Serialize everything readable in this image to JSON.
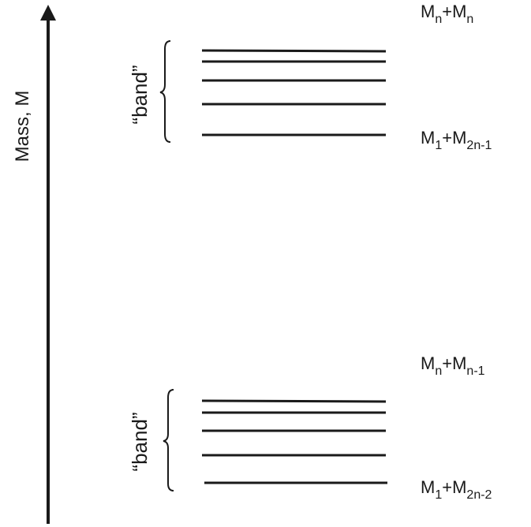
{
  "axis": {
    "label": "Mass, M"
  },
  "upper_band": {
    "brace_label": "“band”",
    "top_label": {
      "base1": "M",
      "sub1": "n",
      "plus": "+",
      "base2": "M",
      "sub2": "n"
    },
    "bottom_label": {
      "base1": "M",
      "sub1": "1",
      "plus": "+",
      "base2": "M",
      "sub2": "2n-1"
    },
    "level_count": 5
  },
  "lower_band": {
    "brace_label": "“band”",
    "top_label": {
      "base1": "M",
      "sub1": "n",
      "plus": "+",
      "base2": "M",
      "sub2": "n-1"
    },
    "bottom_label": {
      "base1": "M",
      "sub1": "1",
      "plus": "+",
      "base2": "M",
      "sub2": "2n-2"
    },
    "level_count": 5
  },
  "colors": {
    "ink": "#1a1a1a"
  }
}
